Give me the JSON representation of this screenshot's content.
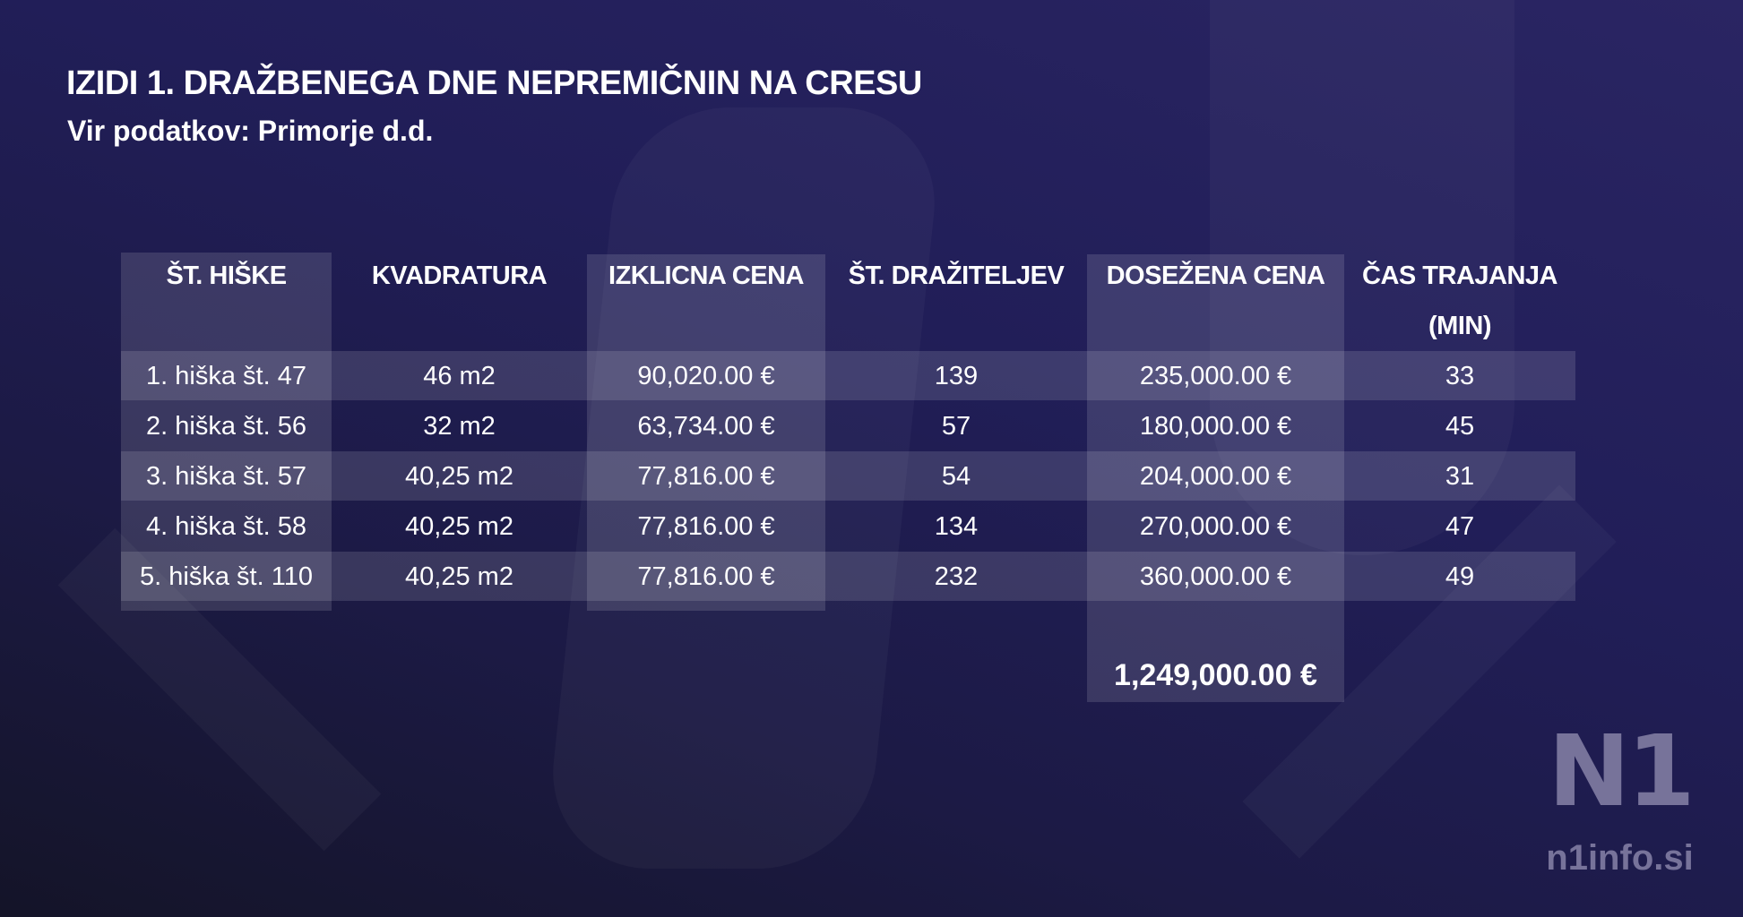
{
  "title": "IZIDI 1. DRAŽBENEGA DNE NEPREMIČNIN NA CRESU",
  "subtitle": "Vir podatkov: Primorje d.d.",
  "table": {
    "headers": [
      [
        "ŠT. HIŠKE",
        ""
      ],
      [
        "KVADRATURA",
        ""
      ],
      [
        "IZKLICNA CENA",
        ""
      ],
      [
        "ŠT. DRAŽITELJEV",
        ""
      ],
      [
        "DOSEŽENA CENA",
        ""
      ],
      [
        "ČAS TRAJANJA",
        "(MIN)"
      ]
    ],
    "rows": [
      [
        "1. hiška št. 47",
        "46 m2",
        "90,020.00 €",
        "139",
        "235,000.00 €",
        "33"
      ],
      [
        "2. hiška št. 56",
        "32 m2",
        "63,734.00 €",
        "57",
        "180,000.00 €",
        "45"
      ],
      [
        "3. hiška št. 57",
        "40,25 m2",
        "77,816.00 €",
        "54",
        "204,000.00 €",
        "31"
      ],
      [
        "4. hiška št. 58",
        "40,25 m2",
        "77,816.00 €",
        "134",
        "270,000.00 €",
        "47"
      ],
      [
        "5. hiška št. 110",
        "40,25 m2",
        "77,816.00 €",
        "232",
        "360,000.00 €",
        "49"
      ]
    ],
    "total": "1,249,000.00 €"
  },
  "logo": {
    "mark": "N1",
    "site": "n1info.si"
  }
}
